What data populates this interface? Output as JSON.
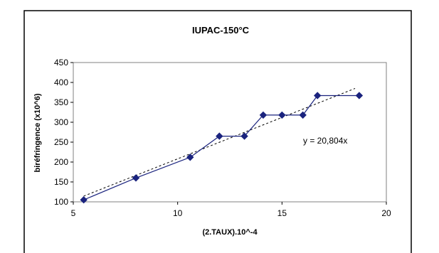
{
  "chart_data": {
    "type": "line",
    "title": "IUPAC-150°C",
    "xlabel": "(2.TAUX).10^-4",
    "ylabel": "biréfringence (x10^6)",
    "xlim": [
      5,
      20
    ],
    "ylim": [
      100,
      450
    ],
    "x_ticks": [
      "5",
      "10",
      "15",
      "20"
    ],
    "y_ticks": [
      "100",
      "150",
      "200",
      "250",
      "300",
      "350",
      "400",
      "450"
    ],
    "grid": false,
    "legend": "none",
    "series": [
      {
        "x": [
          5.5,
          8.0,
          10.6,
          12.0,
          13.2,
          14.1,
          15.0,
          16.0,
          16.7,
          18.7
        ],
        "y": [
          105,
          160,
          212,
          265,
          265,
          318,
          318,
          318,
          367,
          367
        ],
        "color": "#1a237e",
        "marker": "diamond"
      }
    ],
    "trendline": {
      "x": [
        5.5,
        18.5
      ],
      "y": [
        114.4,
        384.9
      ],
      "style": "dotted",
      "color": "#000000",
      "equation": "y = 20,804x"
    }
  }
}
